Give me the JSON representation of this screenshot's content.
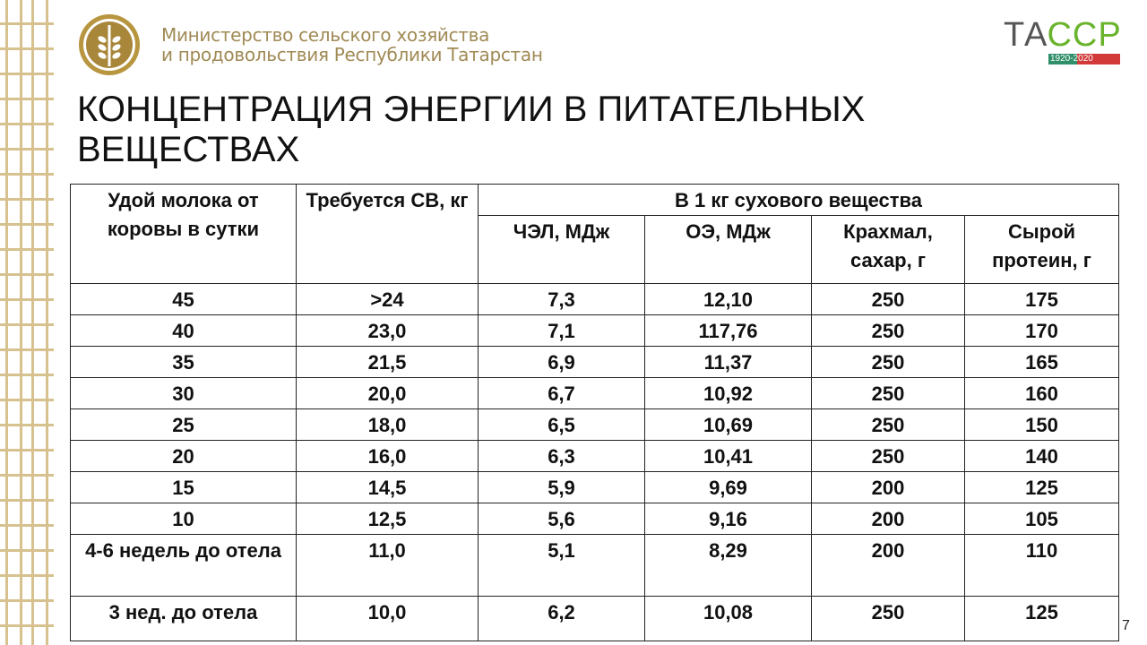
{
  "header": {
    "ministry_line1": "Министерство сельского хозяйства",
    "ministry_line2": "и продовольствия Республики Татарстан",
    "logo_text": "ТАССР",
    "logo_years": "1920-2020"
  },
  "title": "КОНЦЕНТРАЦИЯ ЭНЕРГИИ В ПИТАТЕЛЬНЫХ ВЕЩЕСТВАХ",
  "colors": {
    "gold": "#a08a55",
    "green": "#6ab42d",
    "red": "#d23a3a"
  },
  "table": {
    "col1": "Удой молока от коровы в сутки",
    "col2": "Требуется СВ, кг",
    "group": "В 1 кг сухового вещества",
    "sub": [
      "ЧЭЛ, МДж",
      "ОЭ, МДж",
      "Крахмал, сахар, г",
      "Сырой протеин, г"
    ],
    "rows": [
      [
        "45",
        ">24",
        "7,3",
        "12,10",
        "250",
        "175"
      ],
      [
        "40",
        "23,0",
        "7,1",
        "117,76",
        "250",
        "170"
      ],
      [
        "35",
        "21,5",
        "6,9",
        "11,37",
        "250",
        "165"
      ],
      [
        "30",
        "20,0",
        "6,7",
        "10,92",
        "250",
        "160"
      ],
      [
        "25",
        "18,0",
        "6,5",
        "10,69",
        "250",
        "150"
      ],
      [
        "20",
        "16,0",
        "6,3",
        "10,41",
        "250",
        "140"
      ],
      [
        "15",
        "14,5",
        "5,9",
        "9,69",
        "200",
        "125"
      ],
      [
        "10",
        "12,5",
        "5,6",
        "9,16",
        "200",
        "105"
      ],
      [
        "4-6 недель до отела",
        "11,0",
        "5,1",
        "8,29",
        "200",
        "110"
      ],
      [
        "3 нед. до отела",
        "10,0",
        "6,2",
        "10,08",
        "250",
        "125"
      ]
    ]
  },
  "page_number": "7"
}
